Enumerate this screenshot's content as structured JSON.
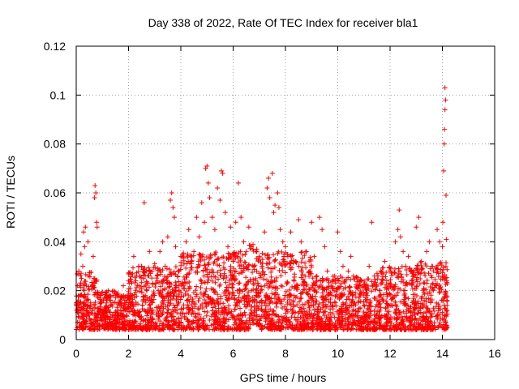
{
  "chart_data": {
    "type": "scatter",
    "title": "Day 338 of 2022, Rate Of TEC Index for receiver bla1",
    "xlabel": "GPS time / hours",
    "ylabel": "ROTI / TECUs",
    "xlim": [
      0,
      16
    ],
    "ylim": [
      0,
      0.12
    ],
    "x_ticks": [
      0,
      2,
      4,
      6,
      8,
      10,
      12,
      14,
      16
    ],
    "y_ticks": [
      0,
      0.02,
      0.04,
      0.06,
      0.08,
      0.1,
      0.12
    ],
    "x_tick_labels": [
      "0",
      "2",
      "4",
      "6",
      "8",
      "10",
      "12",
      "14",
      "16"
    ],
    "y_tick_labels": [
      "0",
      "0.02",
      "0.04",
      "0.06",
      "0.08",
      "0.1",
      "0.12"
    ],
    "grid": true,
    "marker": "+",
    "color": "#ff0000",
    "series": [
      {
        "name": "ROTI",
        "points": [
          [
            0.02,
            0.012
          ],
          [
            0.05,
            0.022
          ],
          [
            0.08,
            0.018
          ],
          [
            0.1,
            0.028
          ],
          [
            0.12,
            0.009
          ],
          [
            0.15,
            0.015
          ],
          [
            0.18,
            0.035
          ],
          [
            0.2,
            0.025
          ],
          [
            0.22,
            0.01
          ],
          [
            0.25,
            0.03
          ],
          [
            0.28,
            0.044
          ],
          [
            0.3,
            0.02
          ],
          [
            0.32,
            0.038
          ],
          [
            0.35,
            0.046
          ],
          [
            0.38,
            0.012
          ],
          [
            0.4,
            0.016
          ],
          [
            0.45,
            0.04
          ],
          [
            0.5,
            0.01
          ],
          [
            0.55,
            0.014
          ],
          [
            0.6,
            0.008
          ],
          [
            0.65,
            0.034
          ],
          [
            0.7,
            0.058
          ],
          [
            0.72,
            0.063
          ],
          [
            0.75,
            0.06
          ],
          [
            0.78,
            0.048
          ],
          [
            0.8,
            0.046
          ],
          [
            0.85,
            0.012
          ],
          [
            0.9,
            0.008
          ],
          [
            0.95,
            0.015
          ],
          [
            1.0,
            0.01
          ],
          [
            1.1,
            0.013
          ],
          [
            1.2,
            0.009
          ],
          [
            1.3,
            0.016
          ],
          [
            1.4,
            0.01
          ],
          [
            1.5,
            0.008
          ],
          [
            1.6,
            0.018
          ],
          [
            1.7,
            0.012
          ],
          [
            1.8,
            0.022
          ],
          [
            1.9,
            0.015
          ],
          [
            2.0,
            0.024
          ],
          [
            2.1,
            0.018
          ],
          [
            2.2,
            0.034
          ],
          [
            2.3,
            0.026
          ],
          [
            2.4,
            0.022
          ],
          [
            2.5,
            0.03
          ],
          [
            2.6,
            0.056
          ],
          [
            2.7,
            0.02
          ],
          [
            2.8,
            0.036
          ],
          [
            2.9,
            0.028
          ],
          [
            3.0,
            0.031
          ],
          [
            3.1,
            0.024
          ],
          [
            3.2,
            0.036
          ],
          [
            3.3,
            0.04
          ],
          [
            3.4,
            0.03
          ],
          [
            3.5,
            0.042
          ],
          [
            3.6,
            0.057
          ],
          [
            3.65,
            0.06
          ],
          [
            3.7,
            0.054
          ],
          [
            3.75,
            0.05
          ],
          [
            3.8,
            0.038
          ],
          [
            3.9,
            0.028
          ],
          [
            4.0,
            0.034
          ],
          [
            4.1,
            0.022
          ],
          [
            4.2,
            0.04
          ],
          [
            4.3,
            0.045
          ],
          [
            4.4,
            0.032
          ],
          [
            4.5,
            0.036
          ],
          [
            4.6,
            0.05
          ],
          [
            4.7,
            0.042
          ],
          [
            4.8,
            0.056
          ],
          [
            4.9,
            0.048
          ],
          [
            4.95,
            0.07
          ],
          [
            5.0,
            0.071
          ],
          [
            5.05,
            0.064
          ],
          [
            5.1,
            0.058
          ],
          [
            5.2,
            0.05
          ],
          [
            5.3,
            0.045
          ],
          [
            5.4,
            0.062
          ],
          [
            5.5,
            0.057
          ],
          [
            5.55,
            0.069
          ],
          [
            5.6,
            0.068
          ],
          [
            5.7,
            0.052
          ],
          [
            5.8,
            0.038
          ],
          [
            5.9,
            0.046
          ],
          [
            6.0,
            0.032
          ],
          [
            6.1,
            0.048
          ],
          [
            6.2,
            0.064
          ],
          [
            6.3,
            0.05
          ],
          [
            6.4,
            0.04
          ],
          [
            6.5,
            0.036
          ],
          [
            6.6,
            0.046
          ],
          [
            6.7,
            0.038
          ],
          [
            6.8,
            0.03
          ],
          [
            6.9,
            0.028
          ],
          [
            7.0,
            0.034
          ],
          [
            7.1,
            0.03
          ],
          [
            7.2,
            0.044
          ],
          [
            7.3,
            0.062
          ],
          [
            7.35,
            0.066
          ],
          [
            7.4,
            0.058
          ],
          [
            7.5,
            0.068
          ],
          [
            7.55,
            0.052
          ],
          [
            7.6,
            0.055
          ],
          [
            7.7,
            0.06
          ],
          [
            7.75,
            0.054
          ],
          [
            7.8,
            0.045
          ],
          [
            7.9,
            0.04
          ],
          [
            8.0,
            0.038
          ],
          [
            8.2,
            0.044
          ],
          [
            8.4,
            0.032
          ],
          [
            8.5,
            0.049
          ],
          [
            8.6,
            0.04
          ],
          [
            8.8,
            0.036
          ],
          [
            9.0,
            0.048
          ],
          [
            9.1,
            0.034
          ],
          [
            9.2,
            0.026
          ],
          [
            9.3,
            0.05
          ],
          [
            9.4,
            0.045
          ],
          [
            9.5,
            0.038
          ],
          [
            9.6,
            0.028
          ],
          [
            9.8,
            0.024
          ],
          [
            10.0,
            0.044
          ],
          [
            10.1,
            0.036
          ],
          [
            10.2,
            0.03
          ],
          [
            10.4,
            0.028
          ],
          [
            10.5,
            0.034
          ],
          [
            10.6,
            0.026
          ],
          [
            10.8,
            0.022
          ],
          [
            11.0,
            0.018
          ],
          [
            11.2,
            0.03
          ],
          [
            11.3,
            0.048
          ],
          [
            11.4,
            0.026
          ],
          [
            11.6,
            0.02
          ],
          [
            11.8,
            0.032
          ],
          [
            12.0,
            0.028
          ],
          [
            12.2,
            0.04
          ],
          [
            12.3,
            0.045
          ],
          [
            12.35,
            0.053
          ],
          [
            12.4,
            0.042
          ],
          [
            12.5,
            0.036
          ],
          [
            12.6,
            0.03
          ],
          [
            12.7,
            0.034
          ],
          [
            12.8,
            0.028
          ],
          [
            13.0,
            0.046
          ],
          [
            13.1,
            0.05
          ],
          [
            13.2,
            0.032
          ],
          [
            13.4,
            0.036
          ],
          [
            13.5,
            0.04
          ],
          [
            13.6,
            0.03
          ],
          [
            13.8,
            0.045
          ],
          [
            13.9,
            0.04
          ],
          [
            14.0,
            0.038
          ],
          [
            14.02,
            0.048
          ],
          [
            14.05,
            0.069
          ],
          [
            14.07,
            0.08
          ],
          [
            14.08,
            0.086
          ],
          [
            14.1,
            0.094
          ],
          [
            14.1,
            0.103
          ],
          [
            14.12,
            0.098
          ],
          [
            14.14,
            0.059
          ],
          [
            14.15,
            0.041
          ],
          [
            14.18,
            0.012
          ]
        ]
      }
    ],
    "dense_bands": [
      {
        "x_from": 0.0,
        "x_to": 0.8,
        "y_from": 0.004,
        "y_to": 0.028
      },
      {
        "x_from": 0.8,
        "x_to": 2.0,
        "y_from": 0.004,
        "y_to": 0.02
      },
      {
        "x_from": 2.0,
        "x_to": 4.0,
        "y_from": 0.004,
        "y_to": 0.03
      },
      {
        "x_from": 4.0,
        "x_to": 6.6,
        "y_from": 0.004,
        "y_to": 0.036
      },
      {
        "x_from": 6.6,
        "x_to": 7.0,
        "y_from": 0.006,
        "y_to": 0.04
      },
      {
        "x_from": 7.0,
        "x_to": 9.0,
        "y_from": 0.004,
        "y_to": 0.036
      },
      {
        "x_from": 9.0,
        "x_to": 10.0,
        "y_from": 0.004,
        "y_to": 0.026
      },
      {
        "x_from": 10.0,
        "x_to": 11.5,
        "y_from": 0.004,
        "y_to": 0.026
      },
      {
        "x_from": 11.5,
        "x_to": 13.0,
        "y_from": 0.004,
        "y_to": 0.03
      },
      {
        "x_from": 13.0,
        "x_to": 14.2,
        "y_from": 0.004,
        "y_to": 0.032
      }
    ]
  }
}
